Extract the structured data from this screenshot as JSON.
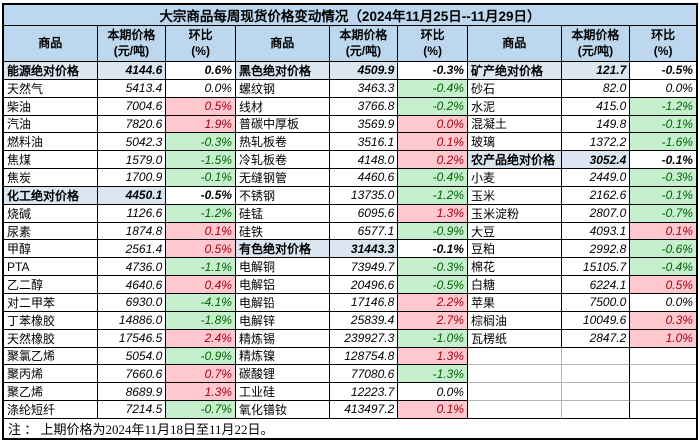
{
  "title": "大宗商品每周现货价格变动情况（2024年11月25日--11月29日）",
  "columns": {
    "product": "商品",
    "price_line1": "本期价格",
    "price_line2": "(元/吨)",
    "pct_line1": "环比",
    "pct_line2": "(%)"
  },
  "footer": "注 ： 上期价格为2024年11月18日至11月22日。",
  "colors": {
    "title_bg": "#BDD7EE",
    "header_bg": "#BDD7EE",
    "section_bg": "#DCE6F1",
    "up_bg": "#FFC7CE",
    "up_text": "#A50010",
    "down_bg": "#C6EFCE",
    "down_text": "#006100",
    "border": "#000000"
  },
  "rows": [
    {
      "g1": {
        "name": "能源绝对价格",
        "price": "4144.6",
        "pct": "0.6%",
        "type": "section"
      },
      "g2": {
        "name": "黑色绝对价格",
        "price": "4509.9",
        "pct": "-0.3%",
        "type": "section"
      },
      "g3": {
        "name": "矿产绝对价格",
        "price": "121.7",
        "pct": "-0.5%",
        "type": "section"
      }
    },
    {
      "g1": {
        "name": "天然气",
        "price": "5413.4",
        "pct": "0.0%",
        "type": "flat"
      },
      "g2": {
        "name": "螺纹钢",
        "price": "3463.3",
        "pct": "-0.4%",
        "type": "down"
      },
      "g3": {
        "name": "砂石",
        "price": "82.0",
        "pct": "0.0%",
        "type": "flat"
      }
    },
    {
      "g1": {
        "name": "柴油",
        "price": "7004.6",
        "pct": "0.5%",
        "type": "up"
      },
      "g2": {
        "name": "线材",
        "price": "3766.8",
        "pct": "-0.2%",
        "type": "down"
      },
      "g3": {
        "name": "水泥",
        "price": "415.0",
        "pct": "-1.2%",
        "type": "down"
      }
    },
    {
      "g1": {
        "name": "汽油",
        "price": "7820.6",
        "pct": "1.9%",
        "type": "up"
      },
      "g2": {
        "name": "普碳中厚板",
        "price": "3569.9",
        "pct": "0.0%",
        "type": "up"
      },
      "g3": {
        "name": "混凝土",
        "price": "149.8",
        "pct": "-0.1%",
        "type": "down"
      }
    },
    {
      "g1": {
        "name": "燃料油",
        "price": "5042.3",
        "pct": "-0.3%",
        "type": "down"
      },
      "g2": {
        "name": "热轧板卷",
        "price": "3516.1",
        "pct": "0.1%",
        "type": "up"
      },
      "g3": {
        "name": "玻璃",
        "price": "1372.2",
        "pct": "-1.6%",
        "type": "down"
      }
    },
    {
      "g1": {
        "name": "焦煤",
        "price": "1579.0",
        "pct": "-1.5%",
        "type": "down"
      },
      "g2": {
        "name": "冷轧板卷",
        "price": "4148.0",
        "pct": "0.2%",
        "type": "up"
      },
      "g3": {
        "name": "农产品绝对价格",
        "price": "3052.4",
        "pct": "-0.1%",
        "type": "section"
      }
    },
    {
      "g1": {
        "name": "焦炭",
        "price": "1700.9",
        "pct": "-0.1%",
        "type": "down"
      },
      "g2": {
        "name": "无缝钢管",
        "price": "4460.6",
        "pct": "-0.4%",
        "type": "down"
      },
      "g3": {
        "name": "小麦",
        "price": "2449.0",
        "pct": "-0.3%",
        "type": "down"
      }
    },
    {
      "g1": {
        "name": "化工绝对价格",
        "price": "4450.1",
        "pct": "-0.5%",
        "type": "section"
      },
      "g2": {
        "name": "不锈钢",
        "price": "13735.0",
        "pct": "-1.2%",
        "type": "down"
      },
      "g3": {
        "name": "玉米",
        "price": "2162.6",
        "pct": "-0.1%",
        "type": "down"
      }
    },
    {
      "g1": {
        "name": "烧碱",
        "price": "1126.6",
        "pct": "-1.2%",
        "type": "down"
      },
      "g2": {
        "name": "硅锰",
        "price": "6095.6",
        "pct": "1.3%",
        "type": "up"
      },
      "g3": {
        "name": "玉米淀粉",
        "price": "2807.0",
        "pct": "-0.7%",
        "type": "down"
      }
    },
    {
      "g1": {
        "name": "尿素",
        "price": "1874.8",
        "pct": "0.1%",
        "type": "up"
      },
      "g2": {
        "name": "硅铁",
        "price": "6577.1",
        "pct": "-0.9%",
        "type": "down"
      },
      "g3": {
        "name": "大豆",
        "price": "4093.1",
        "pct": "0.1%",
        "type": "up"
      }
    },
    {
      "g1": {
        "name": "甲醇",
        "price": "2561.4",
        "pct": "0.5%",
        "type": "up"
      },
      "g2": {
        "name": "有色绝对价格",
        "price": "31443.3",
        "pct": "-0.1%",
        "type": "section"
      },
      "g3": {
        "name": "豆粕",
        "price": "2992.8",
        "pct": "-0.6%",
        "type": "down"
      }
    },
    {
      "g1": {
        "name": "PTA",
        "price": "4736.0",
        "pct": "-1.1%",
        "type": "down"
      },
      "g2": {
        "name": "电解铜",
        "price": "73949.7",
        "pct": "-0.3%",
        "type": "down"
      },
      "g3": {
        "name": "棉花",
        "price": "15105.7",
        "pct": "-0.4%",
        "type": "down"
      }
    },
    {
      "g1": {
        "name": "乙二醇",
        "price": "4640.6",
        "pct": "0.4%",
        "type": "up"
      },
      "g2": {
        "name": "电解铝",
        "price": "20496.6",
        "pct": "-0.5%",
        "type": "down"
      },
      "g3": {
        "name": "白糖",
        "price": "6224.1",
        "pct": "0.5%",
        "type": "up"
      }
    },
    {
      "g1": {
        "name": "对二甲苯",
        "price": "6930.0",
        "pct": "-4.1%",
        "type": "down"
      },
      "g2": {
        "name": "电解铅",
        "price": "17146.8",
        "pct": "2.2%",
        "type": "up"
      },
      "g3": {
        "name": "苹果",
        "price": "7500.0",
        "pct": "0.0%",
        "type": "flat"
      }
    },
    {
      "g1": {
        "name": "丁苯橡胶",
        "price": "14886.0",
        "pct": "-1.8%",
        "type": "down"
      },
      "g2": {
        "name": "电解锌",
        "price": "25839.4",
        "pct": "2.7%",
        "type": "up"
      },
      "g3": {
        "name": "棕榈油",
        "price": "10049.6",
        "pct": "0.3%",
        "type": "up"
      }
    },
    {
      "g1": {
        "name": "天然橡胶",
        "price": "17546.5",
        "pct": "2.4%",
        "type": "up"
      },
      "g2": {
        "name": "精炼锡",
        "price": "239927.3",
        "pct": "-1.0%",
        "type": "down"
      },
      "g3": {
        "name": "瓦楞纸",
        "price": "2847.2",
        "pct": "1.0%",
        "type": "up"
      }
    },
    {
      "g1": {
        "name": "聚氯乙烯",
        "price": "5054.0",
        "pct": "-0.9%",
        "type": "down"
      },
      "g2": {
        "name": "精炼镍",
        "price": "128754.8",
        "pct": "1.3%",
        "type": "up"
      },
      "g3": {
        "name": "",
        "price": "",
        "pct": "",
        "type": "empty"
      }
    },
    {
      "g1": {
        "name": "聚丙烯",
        "price": "7660.6",
        "pct": "0.7%",
        "type": "up"
      },
      "g2": {
        "name": "碳酸锂",
        "price": "77080.6",
        "pct": "-1.3%",
        "type": "down"
      },
      "g3": {
        "name": "",
        "price": "",
        "pct": "",
        "type": "empty"
      }
    },
    {
      "g1": {
        "name": "聚乙烯",
        "price": "8689.9",
        "pct": "1.3%",
        "type": "up"
      },
      "g2": {
        "name": "工业硅",
        "price": "12223.7",
        "pct": "0.0%",
        "type": "flat"
      },
      "g3": {
        "name": "",
        "price": "",
        "pct": "",
        "type": "empty"
      }
    },
    {
      "g1": {
        "name": "涤纶短纤",
        "price": "7214.5",
        "pct": "-0.7%",
        "type": "down"
      },
      "g2": {
        "name": "氧化镨钕",
        "price": "413497.2",
        "pct": "0.1%",
        "type": "up"
      },
      "g3": {
        "name": "",
        "price": "",
        "pct": "",
        "type": "empty"
      }
    }
  ]
}
